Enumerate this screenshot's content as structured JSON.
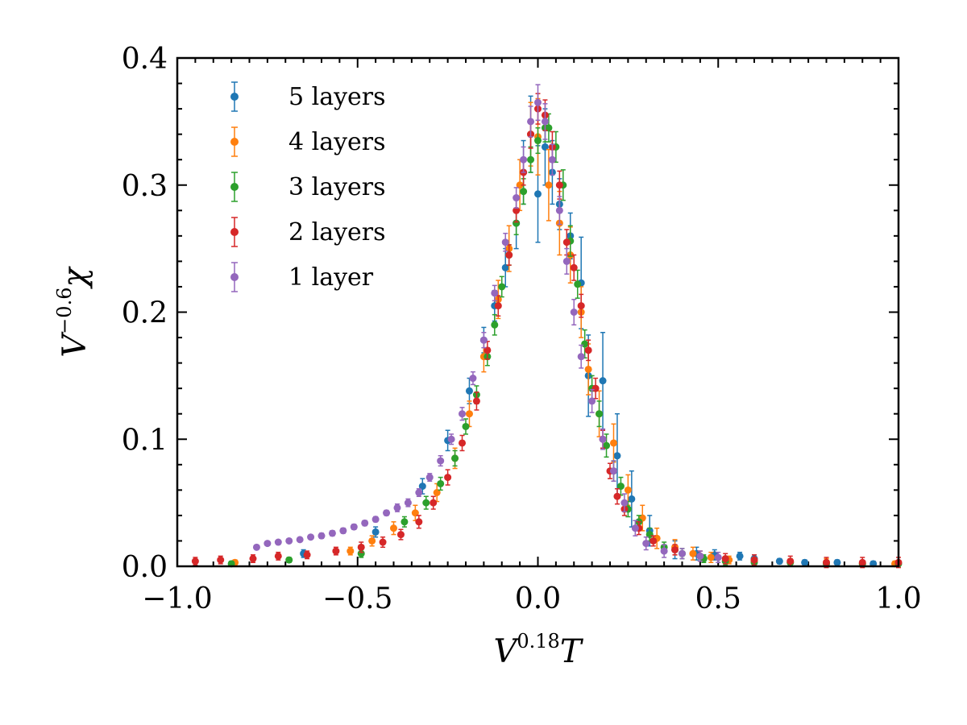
{
  "chart_data": {
    "type": "scatter",
    "title": "",
    "xlabel": {
      "base": "V",
      "exp": "0.18",
      "var": "T"
    },
    "ylabel": {
      "base": "V",
      "exp": "−0.6",
      "var": "χ"
    },
    "xlim": [
      -1.0,
      1.0
    ],
    "ylim": [
      0.0,
      0.4
    ],
    "xticks": [
      -1.0,
      -0.5,
      0.0,
      0.5,
      1.0
    ],
    "xtick_labels": [
      "−1.0",
      "−0.5",
      "0.0",
      "0.5",
      "1.0"
    ],
    "yticks": [
      0.0,
      0.1,
      0.2,
      0.3,
      0.4
    ],
    "ytick_labels": [
      "0.0",
      "0.1",
      "0.2",
      "0.3",
      "0.4"
    ],
    "grid": false,
    "legend_position": "top-left",
    "series": [
      {
        "name": "5 layers",
        "color": "#1f77b4",
        "x": [
          -0.65,
          -0.45,
          -0.32,
          -0.25,
          -0.19,
          -0.15,
          -0.12,
          -0.09,
          -0.06,
          -0.04,
          -0.02,
          0.0,
          0.02,
          0.04,
          0.06,
          0.09,
          0.12,
          0.14,
          0.18,
          0.22,
          0.26,
          0.31,
          0.38,
          0.44,
          0.49,
          0.56,
          0.6,
          0.67,
          0.74,
          0.83,
          0.93
        ],
        "y": [
          0.01,
          0.027,
          0.063,
          0.099,
          0.138,
          0.178,
          0.205,
          0.235,
          0.27,
          0.31,
          0.34,
          0.293,
          0.33,
          0.31,
          0.285,
          0.26,
          0.223,
          0.15,
          0.146,
          0.087,
          0.053,
          0.028,
          0.013,
          0.01,
          0.009,
          0.008,
          0.006,
          0.004,
          0.003,
          0.003,
          0.002
        ],
        "err": [
          0.003,
          0.004,
          0.006,
          0.008,
          0.01,
          0.01,
          0.012,
          0.015,
          0.02,
          0.025,
          0.03,
          0.038,
          0.03,
          0.025,
          0.02,
          0.018,
          0.036,
          0.032,
          0.038,
          0.033,
          0.022,
          0.012,
          0.007,
          0.005,
          0.004,
          0.003,
          0.003,
          0.002,
          0.002,
          0.002,
          0.002
        ]
      },
      {
        "name": "4 layers",
        "color": "#ff7f0e",
        "x": [
          -0.84,
          -0.52,
          -0.46,
          -0.4,
          -0.34,
          -0.28,
          -0.23,
          -0.19,
          -0.15,
          -0.11,
          -0.08,
          -0.05,
          -0.02,
          0.0,
          0.03,
          0.06,
          0.09,
          0.12,
          0.14,
          0.17,
          0.21,
          0.25,
          0.29,
          0.33,
          0.38,
          0.43,
          0.48,
          0.53,
          0.6,
          0.7,
          0.8,
          0.9,
          0.99
        ],
        "y": [
          0.003,
          0.012,
          0.02,
          0.03,
          0.042,
          0.058,
          0.085,
          0.12,
          0.165,
          0.21,
          0.25,
          0.3,
          0.34,
          0.338,
          0.3,
          0.27,
          0.245,
          0.2,
          0.155,
          0.12,
          0.097,
          0.06,
          0.038,
          0.022,
          0.015,
          0.01,
          0.007,
          0.005,
          0.004,
          0.003,
          0.003,
          0.002,
          0.002
        ],
        "err": [
          0.002,
          0.003,
          0.004,
          0.005,
          0.006,
          0.007,
          0.008,
          0.01,
          0.012,
          0.015,
          0.018,
          0.02,
          0.025,
          0.03,
          0.028,
          0.025,
          0.022,
          0.02,
          0.02,
          0.018,
          0.015,
          0.012,
          0.01,
          0.008,
          0.006,
          0.005,
          0.004,
          0.003,
          0.003,
          0.003,
          0.003,
          0.002,
          0.002
        ]
      },
      {
        "name": "3 layers",
        "color": "#2ca02c",
        "x": [
          -0.85,
          -0.69,
          -0.49,
          -0.37,
          -0.31,
          -0.27,
          -0.23,
          -0.2,
          -0.17,
          -0.14,
          -0.12,
          -0.1,
          -0.08,
          -0.06,
          -0.04,
          -0.02,
          0.0,
          0.02,
          0.03,
          0.05,
          0.07,
          0.09,
          0.11,
          0.13,
          0.15,
          0.17,
          0.19,
          0.21,
          0.23,
          0.25,
          0.28,
          0.31,
          0.35,
          0.4,
          0.46,
          0.52,
          0.6,
          0.7,
          0.8,
          0.9,
          1.0
        ],
        "y": [
          0.002,
          0.005,
          0.01,
          0.035,
          0.05,
          0.065,
          0.085,
          0.11,
          0.135,
          0.165,
          0.19,
          0.22,
          0.245,
          0.27,
          0.295,
          0.32,
          0.335,
          0.345,
          0.345,
          0.33,
          0.3,
          0.256,
          0.222,
          0.175,
          0.14,
          0.12,
          0.095,
          0.075,
          0.063,
          0.045,
          0.035,
          0.025,
          0.015,
          0.01,
          0.006,
          0.004,
          0.003,
          0.003,
          0.002,
          0.002,
          0.002
        ],
        "err": [
          0.002,
          0.002,
          0.003,
          0.004,
          0.005,
          0.005,
          0.006,
          0.006,
          0.007,
          0.007,
          0.008,
          0.008,
          0.008,
          0.009,
          0.01,
          0.01,
          0.01,
          0.011,
          0.011,
          0.012,
          0.012,
          0.012,
          0.011,
          0.011,
          0.01,
          0.01,
          0.009,
          0.008,
          0.007,
          0.006,
          0.005,
          0.005,
          0.004,
          0.004,
          0.003,
          0.003,
          0.003,
          0.002,
          0.002,
          0.002,
          0.002
        ]
      },
      {
        "name": "2 layers",
        "color": "#d62728",
        "x": [
          -0.95,
          -0.88,
          -0.79,
          -0.72,
          -0.64,
          -0.56,
          -0.49,
          -0.43,
          -0.38,
          -0.33,
          -0.29,
          -0.25,
          -0.21,
          -0.17,
          -0.14,
          -0.11,
          -0.08,
          -0.06,
          -0.04,
          -0.02,
          0.0,
          0.02,
          0.04,
          0.06,
          0.08,
          0.1,
          0.12,
          0.14,
          0.16,
          0.18,
          0.2,
          0.22,
          0.24,
          0.28,
          0.32,
          0.38,
          0.45,
          0.52,
          0.6,
          0.7,
          0.8,
          0.9,
          1.0
        ],
        "y": [
          0.004,
          0.005,
          0.006,
          0.008,
          0.009,
          0.012,
          0.015,
          0.019,
          0.025,
          0.035,
          0.05,
          0.07,
          0.097,
          0.13,
          0.17,
          0.205,
          0.245,
          0.28,
          0.31,
          0.34,
          0.36,
          0.355,
          0.33,
          0.3,
          0.255,
          0.235,
          0.205,
          0.17,
          0.14,
          0.1,
          0.075,
          0.055,
          0.045,
          0.03,
          0.02,
          0.013,
          0.008,
          0.006,
          0.005,
          0.004,
          0.003,
          0.003,
          0.003
        ],
        "err": [
          0.003,
          0.003,
          0.003,
          0.003,
          0.003,
          0.003,
          0.004,
          0.004,
          0.004,
          0.005,
          0.005,
          0.006,
          0.006,
          0.007,
          0.007,
          0.008,
          0.008,
          0.009,
          0.01,
          0.011,
          0.012,
          0.012,
          0.012,
          0.011,
          0.01,
          0.01,
          0.009,
          0.008,
          0.008,
          0.007,
          0.006,
          0.006,
          0.005,
          0.005,
          0.004,
          0.004,
          0.004,
          0.004,
          0.004,
          0.004,
          0.004,
          0.004,
          0.004
        ]
      },
      {
        "name": "1 layer",
        "color": "#9467bd",
        "x": [
          -0.78,
          -0.75,
          -0.72,
          -0.69,
          -0.66,
          -0.63,
          -0.6,
          -0.57,
          -0.54,
          -0.51,
          -0.48,
          -0.45,
          -0.42,
          -0.39,
          -0.36,
          -0.33,
          -0.3,
          -0.27,
          -0.24,
          -0.21,
          -0.18,
          -0.15,
          -0.12,
          -0.09,
          -0.06,
          -0.04,
          -0.02,
          0.0,
          0.02,
          0.04,
          0.06,
          0.08,
          0.1,
          0.12,
          0.15,
          0.18,
          0.21,
          0.24,
          0.27,
          0.3,
          0.35,
          0.4,
          0.45,
          0.5
        ],
        "y": [
          0.015,
          0.018,
          0.019,
          0.02,
          0.021,
          0.023,
          0.024,
          0.026,
          0.028,
          0.031,
          0.034,
          0.037,
          0.042,
          0.046,
          0.05,
          0.058,
          0.07,
          0.083,
          0.1,
          0.12,
          0.148,
          0.178,
          0.215,
          0.255,
          0.29,
          0.32,
          0.35,
          0.365,
          0.35,
          0.32,
          0.28,
          0.24,
          0.2,
          0.165,
          0.13,
          0.1,
          0.075,
          0.05,
          0.03,
          0.018,
          0.012,
          0.01,
          0.008,
          0.007
        ],
        "err": [
          0.001,
          0.001,
          0.001,
          0.001,
          0.001,
          0.001,
          0.002,
          0.002,
          0.002,
          0.002,
          0.002,
          0.002,
          0.002,
          0.003,
          0.003,
          0.003,
          0.003,
          0.004,
          0.004,
          0.005,
          0.005,
          0.006,
          0.006,
          0.007,
          0.008,
          0.01,
          0.012,
          0.014,
          0.014,
          0.012,
          0.011,
          0.01,
          0.01,
          0.009,
          0.009,
          0.008,
          0.008,
          0.007,
          0.006,
          0.005,
          0.005,
          0.004,
          0.004,
          0.004
        ]
      }
    ]
  }
}
